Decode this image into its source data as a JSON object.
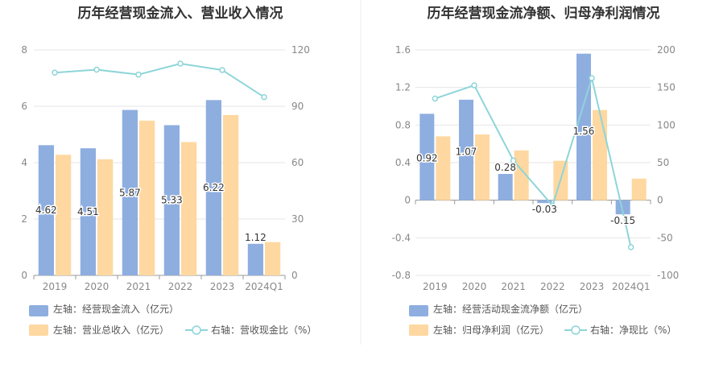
{
  "chart_data": [
    {
      "type": "bar",
      "title": "历年经营现金流入、营业收入情况",
      "categories": [
        "2019",
        "2020",
        "2021",
        "2022",
        "2023",
        "2024Q1"
      ],
      "left_axis": {
        "ylim": [
          0,
          8
        ],
        "ticks": [
          "0",
          "2",
          "4",
          "6",
          "8"
        ]
      },
      "right_axis": {
        "ylim": [
          0,
          120
        ],
        "ticks": [
          "0",
          "30",
          "60",
          "90",
          "120"
        ]
      },
      "series": [
        {
          "name": "左轴：经营现金流入（亿元）",
          "kind": "bar",
          "axis": "left",
          "color": "#8eaee0",
          "values": [
            4.62,
            4.51,
            5.87,
            5.33,
            6.22,
            1.12
          ],
          "labels": [
            "4.62",
            "4.51",
            "5.87",
            "5.33",
            "6.22",
            "1.12"
          ]
        },
        {
          "name": "左轴：营业总收入（亿元）",
          "kind": "bar",
          "axis": "left",
          "color": "#fed8a0",
          "values": [
            4.28,
            4.12,
            5.49,
            4.73,
            5.69,
            1.18
          ]
        },
        {
          "name": "右轴：营收现金比（%）",
          "kind": "line",
          "axis": "right",
          "color": "#8dd5d9",
          "values": [
            107.9,
            109.5,
            106.9,
            112.7,
            109.3,
            94.9
          ]
        }
      ],
      "grid": true,
      "legend": "bottom"
    },
    {
      "type": "bar",
      "title": "历年经营现金流净额、归母净利润情况",
      "categories": [
        "2019",
        "2020",
        "2021",
        "2022",
        "2023",
        "2024Q1"
      ],
      "left_axis": {
        "ylim": [
          -0.8,
          1.6
        ],
        "ticks": [
          "-0.8",
          "-0.4",
          "0",
          "0.4",
          "0.8",
          "1.2",
          "1.6"
        ]
      },
      "right_axis": {
        "ylim": [
          -100,
          200
        ],
        "ticks": [
          "-100",
          "-50",
          "0",
          "50",
          "100",
          "150",
          "200"
        ]
      },
      "series": [
        {
          "name": "左轴：经营活动现金流净额（亿元）",
          "kind": "bar",
          "axis": "left",
          "color": "#8eaee0",
          "values": [
            0.92,
            1.07,
            0.28,
            -0.03,
            1.56,
            -0.15
          ],
          "labels": [
            "0.92",
            "1.07",
            "0.28",
            "-0.03",
            "1.56",
            "-0.15"
          ]
        },
        {
          "name": "左轴：归母净利润（亿元）",
          "kind": "bar",
          "axis": "left",
          "color": "#fed8a0",
          "values": [
            0.68,
            0.7,
            0.53,
            0.42,
            0.96,
            0.23
          ]
        },
        {
          "name": "右轴：净现比（%）",
          "kind": "line",
          "axis": "right",
          "color": "#8dd5d9",
          "values": [
            135.3,
            152.9,
            52.8,
            -7.1,
            162.5,
            -62.5
          ]
        }
      ],
      "grid": true,
      "legend": "bottom"
    }
  ]
}
